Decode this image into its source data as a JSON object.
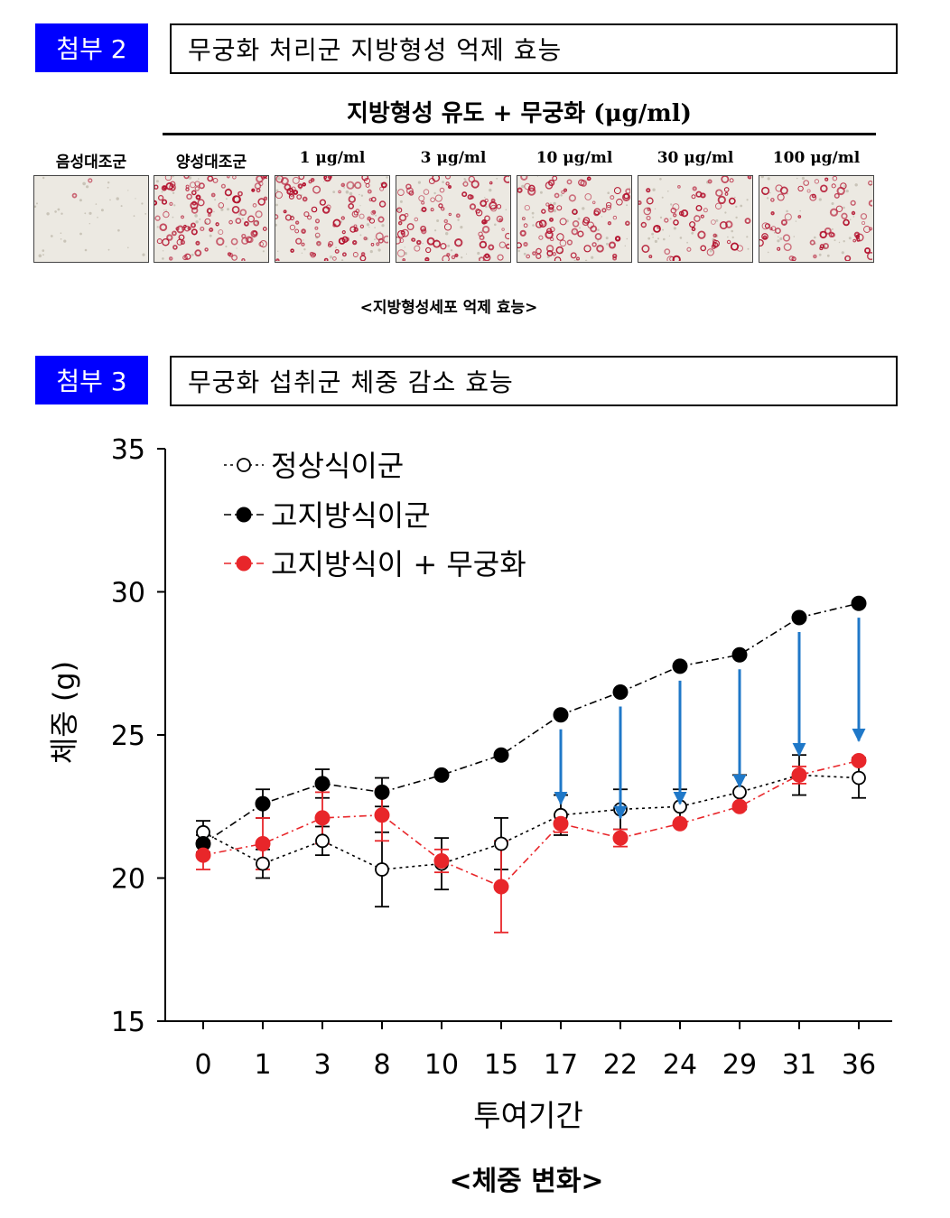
{
  "section2": {
    "tag": "첨부 2",
    "title": "무궁화 처리군 지방형성 억제 효능",
    "group_header": "지방형성 유도 + 무궁화 (μg/ml)",
    "columns": [
      "음성대조군",
      "양성대조군",
      "1 μg/ml",
      "3 μg/ml",
      "10 μg/ml",
      "30 μg/ml",
      "100 μg/ml"
    ],
    "staining_density": [
      0.02,
      0.95,
      0.9,
      0.8,
      0.75,
      0.55,
      0.6
    ],
    "caption": "<지방형성세포 억제 효능>"
  },
  "section3": {
    "tag": "첨부 3",
    "title": "무궁화 섭취군 체중 감소 효능",
    "caption": "<체중 변화>"
  },
  "colors": {
    "tag_bg": "#0000ff",
    "stain": "#b3122e",
    "series_red": "#e8262a",
    "arrow": "#1f78c8"
  },
  "chart_data": {
    "type": "line",
    "x": [
      "0",
      "1",
      "3",
      "8",
      "10",
      "15",
      "17",
      "22",
      "24",
      "29",
      "31",
      "36"
    ],
    "xlabel": "투여기간",
    "ylabel": "체중 (g)",
    "ylim": [
      15,
      35
    ],
    "yticks": [
      15,
      20,
      25,
      30,
      35
    ],
    "legend_position": "top-left",
    "series": [
      {
        "name": "정상식이군",
        "marker": "open-circle",
        "color": "#000000",
        "values": [
          21.6,
          20.5,
          21.3,
          20.3,
          20.5,
          21.2,
          22.2,
          22.4,
          22.5,
          23.0,
          23.6,
          23.5
        ],
        "errors": [
          0.4,
          0.5,
          0.5,
          1.3,
          0.9,
          0.9,
          0.7,
          0.7,
          0.6,
          0.6,
          0.7,
          0.7
        ]
      },
      {
        "name": "고지방식이군",
        "marker": "filled-circle",
        "color": "#000000",
        "values": [
          21.2,
          22.6,
          23.3,
          23.0,
          23.6,
          24.3,
          25.7,
          26.5,
          27.4,
          27.8,
          29.1,
          29.6
        ],
        "errors": [
          0.3,
          0.5,
          0.5,
          0.5,
          0,
          0,
          0,
          0,
          0,
          0,
          0,
          0
        ]
      },
      {
        "name": "고지방식이 + 무궁화",
        "marker": "filled-circle",
        "color": "#e8262a",
        "values": [
          20.8,
          21.2,
          22.1,
          22.2,
          20.6,
          19.7,
          21.9,
          21.4,
          21.9,
          22.5,
          23.6,
          24.1
        ],
        "errors": [
          0.5,
          0.9,
          0.9,
          0.9,
          0.4,
          1.6,
          0.3,
          0.3,
          0,
          0,
          0.3,
          0
        ]
      }
    ],
    "arrows_from_to": [
      [
        6,
        6
      ],
      [
        7,
        7
      ],
      [
        8,
        8
      ],
      [
        9,
        9
      ],
      [
        10,
        10
      ],
      [
        11,
        11
      ]
    ]
  }
}
